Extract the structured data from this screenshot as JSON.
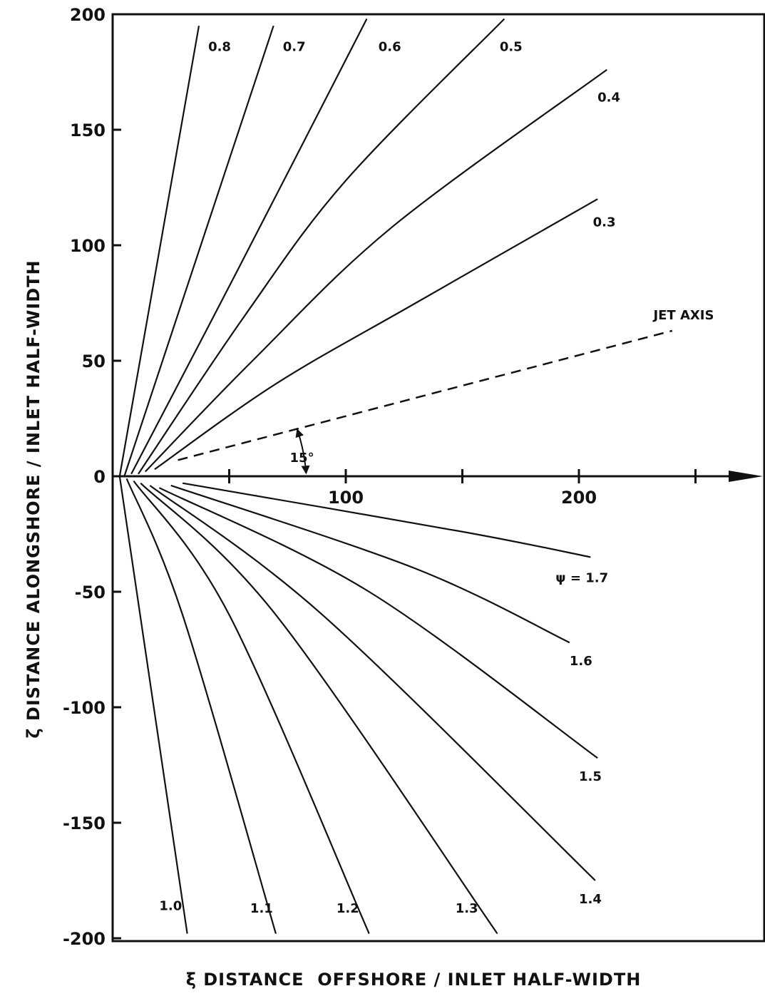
{
  "chart_data": {
    "type": "line",
    "title": "",
    "xlabel": "ξ DISTANCE  OFFSHORE / INLET HALF-WIDTH",
    "ylabel": "ζ DISTANCE  ALONGSHORE / INLET HALF-WIDTH",
    "xlim": [
      0,
      280
    ],
    "ylim": [
      -200,
      200
    ],
    "y_ticks": [
      200,
      150,
      100,
      50,
      0,
      -50,
      -100,
      -150,
      -200
    ],
    "x_tick_labels": [
      {
        "value": 100,
        "label": "100"
      },
      {
        "value": 200,
        "label": "200"
      }
    ],
    "x_tick_marks": [
      50,
      100,
      150,
      200,
      250
    ],
    "series": [
      {
        "name": "0.8",
        "points": [
          [
            3,
            0
          ],
          [
            37,
            195
          ]
        ]
      },
      {
        "name": "0.7",
        "points": [
          [
            5,
            0
          ],
          [
            69,
            195
          ]
        ]
      },
      {
        "name": "0.6",
        "points": [
          [
            8,
            1
          ],
          [
            54,
            90
          ],
          [
            109,
            198
          ]
        ]
      },
      {
        "name": "0.5",
        "points": [
          [
            11,
            1
          ],
          [
            57,
            70
          ],
          [
            100,
            128
          ],
          [
            168,
            198
          ]
        ]
      },
      {
        "name": "0.4",
        "points": [
          [
            14,
            2
          ],
          [
            60,
            50
          ],
          [
            120,
            108
          ],
          [
            212,
            176
          ]
        ]
      },
      {
        "name": "0.3",
        "points": [
          [
            18,
            3
          ],
          [
            70,
            40
          ],
          [
            130,
            75
          ],
          [
            208,
            120
          ]
        ]
      },
      {
        "name": "1.0",
        "points": [
          [
            3,
            0
          ],
          [
            32,
            -198
          ]
        ]
      },
      {
        "name": "1.1",
        "points": [
          [
            6,
            -1
          ],
          [
            30,
            -60
          ],
          [
            70,
            -198
          ]
        ]
      },
      {
        "name": "1.2",
        "points": [
          [
            9,
            -2
          ],
          [
            50,
            -60
          ],
          [
            110,
            -198
          ]
        ]
      },
      {
        "name": "1.3",
        "points": [
          [
            12,
            -3
          ],
          [
            70,
            -60
          ],
          [
            165,
            -198
          ]
        ]
      },
      {
        "name": "1.4",
        "points": [
          [
            16,
            -4
          ],
          [
            90,
            -60
          ],
          [
            207,
            -175
          ]
        ]
      },
      {
        "name": "1.5",
        "points": [
          [
            20,
            -5
          ],
          [
            110,
            -50
          ],
          [
            208,
            -122
          ]
        ]
      },
      {
        "name": "1.6",
        "points": [
          [
            25,
            -4
          ],
          [
            130,
            -40
          ],
          [
            196,
            -72
          ]
        ]
      },
      {
        "name": "1.7",
        "points": [
          [
            30,
            -3
          ],
          [
            150,
            -24
          ],
          [
            205,
            -35
          ]
        ]
      }
    ],
    "curve_labels": [
      {
        "text": "0.8",
        "x": 41,
        "y": 186
      },
      {
        "text": "0.7",
        "x": 73,
        "y": 186
      },
      {
        "text": "0.6",
        "x": 114,
        "y": 186
      },
      {
        "text": "0.5",
        "x": 166,
        "y": 186
      },
      {
        "text": "0.4",
        "x": 208,
        "y": 164
      },
      {
        "text": "0.3",
        "x": 206,
        "y": 110
      },
      {
        "text": "ψ = 1.7",
        "x": 190,
        "y": -44
      },
      {
        "text": "1.6",
        "x": 196,
        "y": -80
      },
      {
        "text": "1.5",
        "x": 200,
        "y": -130
      },
      {
        "text": "1.4",
        "x": 200,
        "y": -183
      },
      {
        "text": "1.3",
        "x": 147,
        "y": -187
      },
      {
        "text": "1.2",
        "x": 96,
        "y": -187
      },
      {
        "text": "1.1",
        "x": 59,
        "y": -187
      },
      {
        "text": "1.0",
        "x": 20,
        "y": -186
      }
    ],
    "jet_axis": {
      "label": "JET AXIS",
      "label_position": {
        "x": 235,
        "y": 66
      },
      "angle_deg": 15,
      "angle_label": "15°",
      "points": [
        [
          28,
          7
        ],
        [
          240,
          63
        ]
      ],
      "style": "dashed"
    },
    "grid": false,
    "legend": "none"
  }
}
